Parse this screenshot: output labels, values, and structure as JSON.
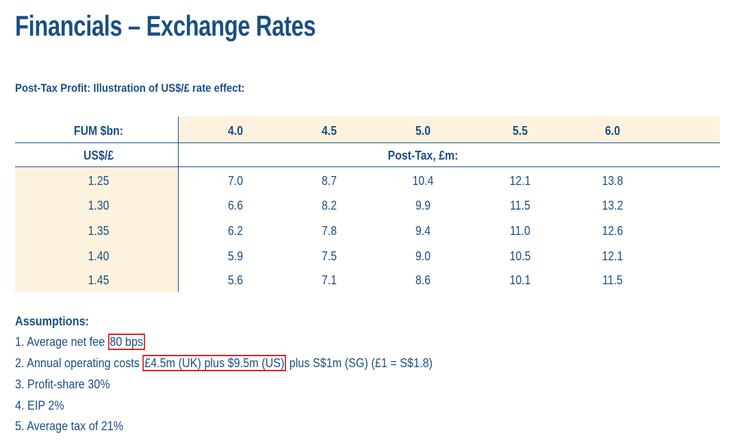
{
  "title": "Financials – Exchange Rates",
  "subtitle": "Post-Tax Profit: Illustration of US$/£ rate effect:",
  "table": {
    "fum_label": "FUM $bn:",
    "fum_values": [
      "4.0",
      "4.5",
      "5.0",
      "5.5",
      "6.0"
    ],
    "rate_label": "US$/£",
    "post_tax_label": "Post-Tax, £m:",
    "rows": [
      {
        "rate": "1.25",
        "values": [
          "7.0",
          "8.7",
          "10.4",
          "12.1",
          "13.8"
        ]
      },
      {
        "rate": "1.30",
        "values": [
          "6.6",
          "8.2",
          "9.9",
          "11.5",
          "13.2"
        ]
      },
      {
        "rate": "1.35",
        "values": [
          "6.2",
          "7.8",
          "9.4",
          "11.0",
          "12.6"
        ]
      },
      {
        "rate": "1.40",
        "values": [
          "5.9",
          "7.5",
          "9.0",
          "10.5",
          "12.1"
        ]
      },
      {
        "rate": "1.45",
        "values": [
          "5.6",
          "7.1",
          "8.6",
          "10.1",
          "11.5"
        ]
      }
    ]
  },
  "assumptions": {
    "title": "Assumptions:",
    "items": [
      {
        "pre": "1. Average net fee ",
        "highlight": "80 bps",
        "post": ""
      },
      {
        "pre": "2. Annual operating costs ",
        "highlight": "£4.5m (UK) plus $9.5m (US)",
        "post": " plus S$1m (SG) (£1 = S$1.8)"
      },
      {
        "pre": "3. Profit-share 30%",
        "highlight": "",
        "post": ""
      },
      {
        "pre": "4. EIP 2%",
        "highlight": "",
        "post": ""
      },
      {
        "pre": "5. Average tax of 21%",
        "highlight": "",
        "post": ""
      }
    ]
  },
  "colors": {
    "primary": "#1a4f86",
    "shade": "#fdf2de",
    "highlight_border": "#e0201d"
  }
}
